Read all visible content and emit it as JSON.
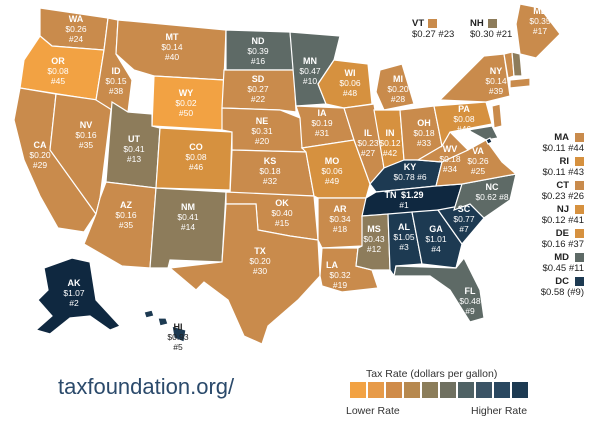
{
  "source": "taxfoundation.org/",
  "legend": {
    "title": "Tax Rate (dollars per gallon)",
    "low_label": "Lower Rate",
    "high_label": "Higher Rate",
    "swatches": [
      "#f2a243",
      "#e79a48",
      "#cf8b49",
      "#b7894f",
      "#8b7d5a",
      "#6f7060",
      "#4f6265",
      "#3b5466",
      "#294760",
      "#1d3a52"
    ]
  },
  "colors": {
    "lightest": "#f2a243",
    "light": "#d6913f",
    "tan": "#c98b4c",
    "khaki": "#8d7c5b",
    "slate": "#5e6a66",
    "navy": "#1d3a52",
    "darkest": "#0f2840"
  },
  "states": {
    "WA": {
      "abbr": "WA",
      "value": "$0.26",
      "rank": "#24"
    },
    "OR": {
      "abbr": "OR",
      "value": "$0.08",
      "rank": "#45"
    },
    "CA": {
      "abbr": "CA",
      "value": "$0.20",
      "rank": "#29"
    },
    "NV": {
      "abbr": "NV",
      "value": "$0.16",
      "rank": "#35"
    },
    "ID": {
      "abbr": "ID",
      "value": "$0.15",
      "rank": "#38"
    },
    "MT": {
      "abbr": "MT",
      "value": "$0.14",
      "rank": "#40"
    },
    "WY": {
      "abbr": "WY",
      "value": "$0.02",
      "rank": "#50"
    },
    "UT": {
      "abbr": "UT",
      "value": "$0.41",
      "rank": "#13"
    },
    "AZ": {
      "abbr": "AZ",
      "value": "$0.16",
      "rank": "#35"
    },
    "CO": {
      "abbr": "CO",
      "value": "$0.08",
      "rank": "#46"
    },
    "NM": {
      "abbr": "NM",
      "value": "$0.41",
      "rank": "#14"
    },
    "ND": {
      "abbr": "ND",
      "value": "$0.39",
      "rank": "#16"
    },
    "SD": {
      "abbr": "SD",
      "value": "$0.27",
      "rank": "#22"
    },
    "NE": {
      "abbr": "NE",
      "value": "$0.31",
      "rank": "#20"
    },
    "KS": {
      "abbr": "KS",
      "value": "$0.18",
      "rank": "#32"
    },
    "OK": {
      "abbr": "OK",
      "value": "$0.40",
      "rank": "#15"
    },
    "TX": {
      "abbr": "TX",
      "value": "$0.20",
      "rank": "#30"
    },
    "MN": {
      "abbr": "MN",
      "value": "$0.47",
      "rank": "#10"
    },
    "IA": {
      "abbr": "IA",
      "value": "$0.19",
      "rank": "#31"
    },
    "MO": {
      "abbr": "MO",
      "value": "$0.06",
      "rank": "#49"
    },
    "AR": {
      "abbr": "AR",
      "value": "$0.34",
      "rank": "#18"
    },
    "LA": {
      "abbr": "LA",
      "value": "$0.32",
      "rank": "#19"
    },
    "WI": {
      "abbr": "WI",
      "value": "$0.06",
      "rank": "#48"
    },
    "IL": {
      "abbr": "IL",
      "value": "$0.23",
      "rank": "#27"
    },
    "MI": {
      "abbr": "MI",
      "value": "$0.20",
      "rank": "#28"
    },
    "IN": {
      "abbr": "IN",
      "value": "$0.12",
      "rank": "#42"
    },
    "OH": {
      "abbr": "OH",
      "value": "$0.18",
      "rank": "#33"
    },
    "KY": {
      "abbr": "KY",
      "value": "$0.78",
      "rank": "#6"
    },
    "TN": {
      "abbr": "TN",
      "value": "$1.29",
      "rank": "#1"
    },
    "MS": {
      "abbr": "MS",
      "value": "$0.43",
      "rank": "#12"
    },
    "AL": {
      "abbr": "AL",
      "value": "$1.05",
      "rank": "#3"
    },
    "GA": {
      "abbr": "GA",
      "value": "$1.01",
      "rank": "#4"
    },
    "FL": {
      "abbr": "FL",
      "value": "$0.48",
      "rank": "#9"
    },
    "SC": {
      "abbr": "SC",
      "value": "$0.77",
      "rank": "#7"
    },
    "NC": {
      "abbr": "NC",
      "value": "$0.62",
      "rank": "#8"
    },
    "VA": {
      "abbr": "VA",
      "value": "$0.26",
      "rank": "#25"
    },
    "WV": {
      "abbr": "WV",
      "value": "$0.18",
      "rank": "#34"
    },
    "PA": {
      "abbr": "PA",
      "value": "$0.08",
      "rank": "#46"
    },
    "NY": {
      "abbr": "NY",
      "value": "$0.14",
      "rank": "#39"
    },
    "ME": {
      "abbr": "ME",
      "value": "$0.35",
      "rank": "#17"
    },
    "AK": {
      "abbr": "AK",
      "value": "$1.07",
      "rank": "#2"
    },
    "HI": {
      "abbr": "HI",
      "value": "$0.93",
      "rank": "#5"
    }
  },
  "callouts": {
    "VT": {
      "abbr": "VT",
      "text": "$0.27 #23"
    },
    "NH": {
      "abbr": "NH",
      "text": "$0.30 #21"
    },
    "MA": {
      "abbr": "MA",
      "text": "$0.11 #44"
    },
    "RI": {
      "abbr": "RI",
      "text": "$0.11 #43"
    },
    "CT": {
      "abbr": "CT",
      "text": "$0.23 #26"
    },
    "NJ": {
      "abbr": "NJ",
      "text": "$0.12 #41"
    },
    "DE": {
      "abbr": "DE",
      "text": "$0.16 #37"
    },
    "MD": {
      "abbr": "MD",
      "text": "$0.45 #11"
    },
    "DC": {
      "abbr": "DC",
      "text": "$0.58 (#9)"
    }
  }
}
